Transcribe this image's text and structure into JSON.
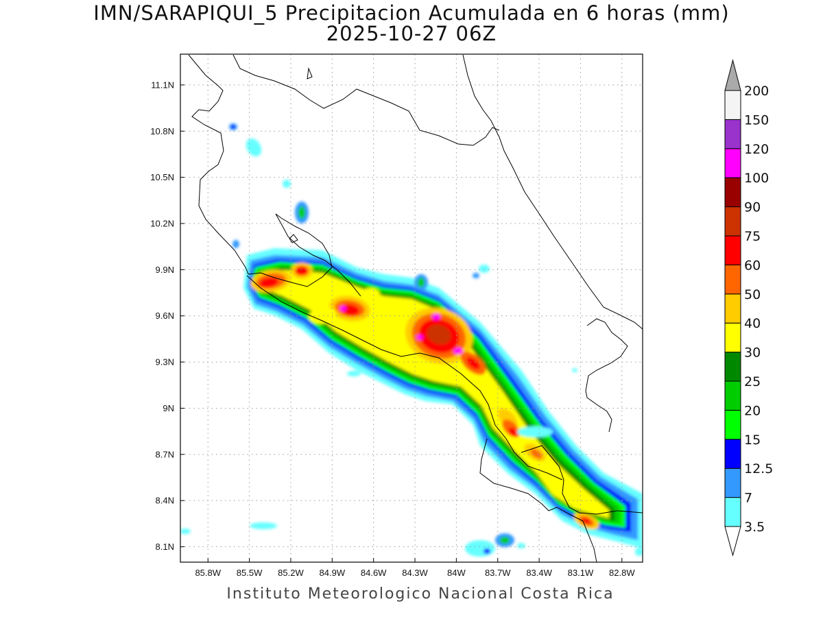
{
  "title": {
    "line1": "IMN/SARAPIQUI_5 Precipitacion Acumulada en 6 horas (mm)",
    "line2": "2025-10-27 06Z"
  },
  "footer": "Instituto Meteorologico Nacional Costa Rica",
  "map": {
    "lon_range": [
      -86.0,
      -82.65
    ],
    "lat_range": [
      8.0,
      11.3
    ],
    "lon_ticks": [
      {
        "v": -85.8,
        "label": "85.8W"
      },
      {
        "v": -85.5,
        "label": "85.5W"
      },
      {
        "v": -85.2,
        "label": "85.2W"
      },
      {
        "v": -84.9,
        "label": "84.9W"
      },
      {
        "v": -84.6,
        "label": "84.6W"
      },
      {
        "v": -84.3,
        "label": "84.3W"
      },
      {
        "v": -84.0,
        "label": "84W"
      },
      {
        "v": -83.7,
        "label": "83.7W"
      },
      {
        "v": -83.4,
        "label": "83.4W"
      },
      {
        "v": -83.1,
        "label": "83.1W"
      },
      {
        "v": -82.8,
        "label": "82.8W"
      }
    ],
    "lat_ticks": [
      {
        "v": 8.1,
        "label": "8.1N"
      },
      {
        "v": 8.4,
        "label": "8.4N"
      },
      {
        "v": 8.7,
        "label": "8.7N"
      },
      {
        "v": 9.0,
        "label": "9N"
      },
      {
        "v": 9.3,
        "label": "9.3N"
      },
      {
        "v": 9.6,
        "label": "9.6N"
      },
      {
        "v": 9.9,
        "label": "9.9N"
      },
      {
        "v": 10.2,
        "label": "10.2N"
      },
      {
        "v": 10.5,
        "label": "10.5N"
      },
      {
        "v": 10.8,
        "label": "10.8N"
      },
      {
        "v": 11.1,
        "label": "11.1N"
      }
    ],
    "grid": "dotted"
  },
  "colorbar": {
    "unit": "mm",
    "labels": [
      "3.5",
      "7",
      "12.5",
      "15",
      "20",
      "25",
      "30",
      "40",
      "50",
      "60",
      "75",
      "90",
      "100",
      "120",
      "150",
      "200"
    ],
    "colors": [
      "#66ffff",
      "#3399ff",
      "#0000ff",
      "#00ff00",
      "#00cc00",
      "#008800",
      "#ffff00",
      "#ffcc00",
      "#ff6600",
      "#ff0000",
      "#cc3300",
      "#990000",
      "#ff00ff",
      "#9933cc",
      "#f4f4f4"
    ],
    "below_color": "#ffffff",
    "above_color": "#aaaaaa"
  },
  "colors": {
    "coast": "#000000",
    "grid": "#999999"
  }
}
